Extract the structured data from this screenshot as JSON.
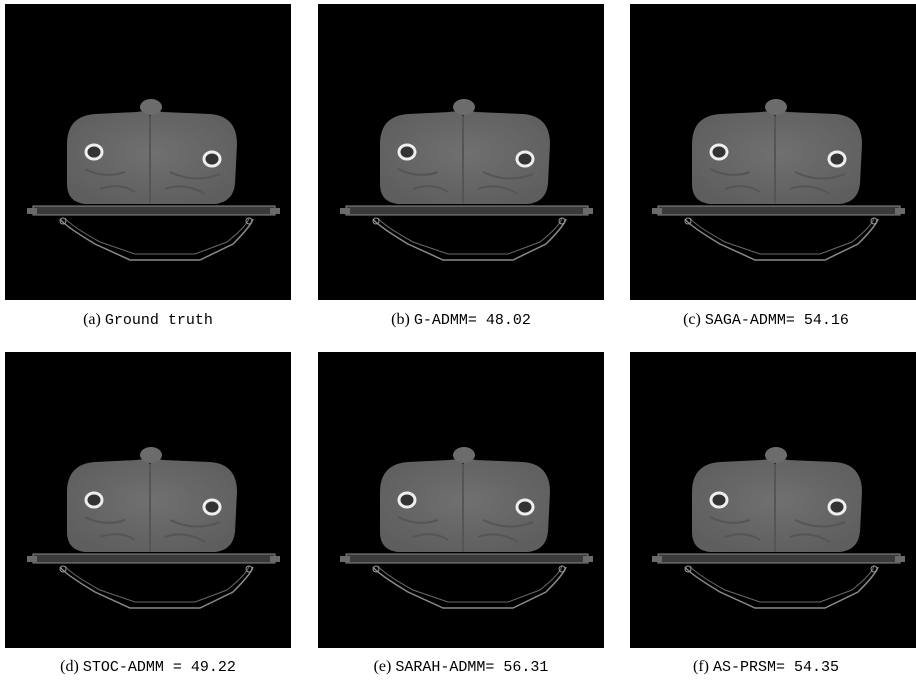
{
  "panels": [
    {
      "label": "(a)",
      "caption": "Ground truth"
    },
    {
      "label": "(b)",
      "caption": "G-ADMM= 48.02"
    },
    {
      "label": "(c)",
      "caption": "SAGA-ADMM= 54.16"
    },
    {
      "label": "(d)",
      "caption": "STOC-ADMM = 49.22"
    },
    {
      "label": "(e)",
      "caption": "SARAH-ADMM= 56.31"
    },
    {
      "label": "(f)",
      "caption": "AS-PRSM= 54.35"
    }
  ]
}
